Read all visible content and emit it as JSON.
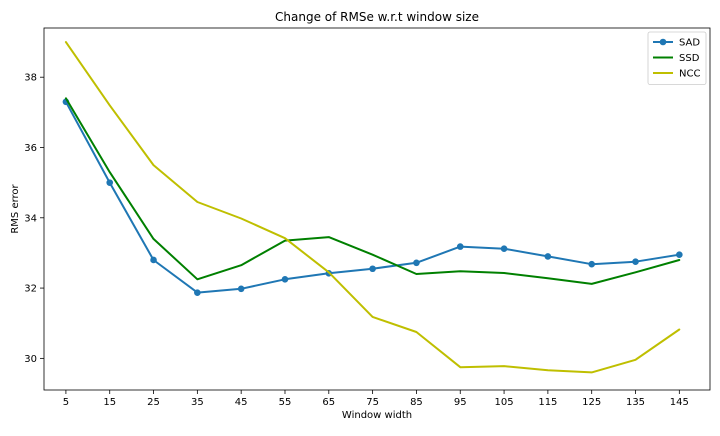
{
  "chart_data": {
    "type": "line",
    "title": "Change of RMSe w.r.t window size",
    "xlabel": "Window width",
    "ylabel": "RMS error",
    "x": [
      5,
      15,
      25,
      35,
      45,
      55,
      65,
      75,
      85,
      95,
      105,
      115,
      125,
      135,
      145
    ],
    "xlim": [
      0,
      152
    ],
    "ylim": [
      29.1,
      39.4
    ],
    "yticks": [
      30,
      32,
      34,
      36,
      38
    ],
    "grid": false,
    "legend_position": "top-right",
    "series": [
      {
        "name": "SAD",
        "color": "#1f77b4",
        "marker": "circle",
        "values": [
          37.3,
          35.0,
          32.8,
          31.87,
          31.98,
          32.25,
          32.42,
          32.55,
          32.72,
          33.18,
          33.12,
          32.9,
          32.68,
          32.75,
          32.95
        ]
      },
      {
        "name": "SSD",
        "color": "#008000",
        "marker": "none",
        "values": [
          37.4,
          35.3,
          33.4,
          32.25,
          32.65,
          33.35,
          33.45,
          32.95,
          32.4,
          32.48,
          32.43,
          32.28,
          32.12,
          32.45,
          32.8
        ]
      },
      {
        "name": "NCC",
        "color": "#bfbf00",
        "marker": "none",
        "values": [
          39.0,
          37.2,
          35.5,
          34.45,
          33.98,
          33.42,
          32.45,
          31.18,
          30.75,
          29.75,
          29.78,
          29.66,
          29.6,
          29.96,
          30.82
        ]
      }
    ]
  }
}
